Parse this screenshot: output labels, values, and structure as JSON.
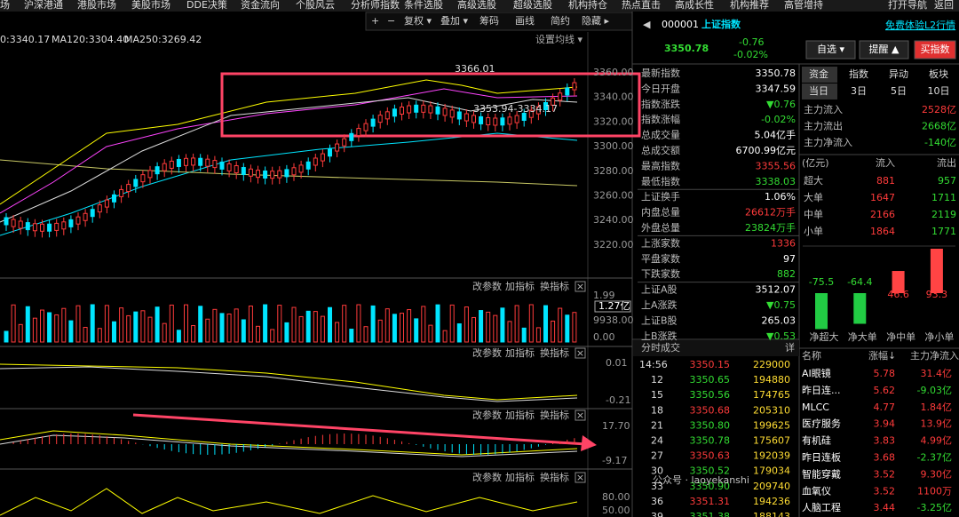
{
  "menu": [
    "场",
    "沪深港通",
    "港股市场",
    "美股市场",
    "DDE决策",
    "资金流向",
    "个股风云",
    "分析师指数",
    "条件选股",
    "高级选股",
    "超级选股",
    "机构持仓",
    "热点直击",
    "高成长性",
    "机构推荐",
    "高管增持",
    "打开导航",
    "返回"
  ],
  "toolbar": [
    "+",
    "−",
    "复权 ▾",
    "叠加 ▾",
    "筹码",
    "画线",
    "简约",
    "隐藏 ▸"
  ],
  "quote": {
    "code": "000001",
    "name": "上证指数",
    "l2": "免费体验L2行情",
    "price": "3350.78",
    "change": "-0.76",
    "pct": "-0.02%",
    "buttons": [
      "自选 ▾",
      "提醒 ▲",
      "买指数"
    ]
  },
  "ma": {
    "ma_partial": "0:3340.17",
    "ma120": "MA120:3304.40",
    "ma250": "MA250:3269.42",
    "settings": "设置均线 ▾"
  },
  "price_axis": [
    "3360.00",
    "3340.00",
    "3320.00",
    "3300.00",
    "3280.00",
    "3260.00",
    "3240.00",
    "3220.00"
  ],
  "annotations": [
    "3366.01",
    "3353.94-3334.17"
  ],
  "stats": [
    [
      "最新指数",
      "3350.78"
    ],
    [
      "今日开盘",
      "3347.59"
    ],
    [
      "指数涨跌",
      "▼0.76"
    ],
    [
      "指数涨幅",
      "-0.02%"
    ],
    [
      "总成交量",
      "5.04亿手"
    ],
    [
      "总成交额",
      "6700.99亿元"
    ],
    [
      "最高指数",
      "3355.56"
    ],
    [
      "最低指数",
      "3338.03"
    ],
    [
      "上证换手",
      "1.06%"
    ],
    [
      "内盘总量",
      "26612万手"
    ],
    [
      "外盘总量",
      "23824万手"
    ],
    [
      "上涨家数",
      "1336"
    ],
    [
      "平盘家数",
      "97"
    ],
    [
      "下跌家数",
      "882"
    ],
    [
      "上证A股",
      "3512.07"
    ],
    [
      "上A涨跌",
      "▼0.75"
    ],
    [
      "上证B股",
      "265.03"
    ],
    [
      "上B涨跌",
      "▼0.53"
    ]
  ],
  "fund": {
    "tabs": [
      "资金",
      "指数",
      "异动",
      "板块"
    ],
    "periods": [
      "当日",
      "3日",
      "5日",
      "10日"
    ],
    "summary": [
      [
        "主力流入",
        "2528亿"
      ],
      [
        "主力流出",
        "2668亿"
      ],
      [
        "主力净流入",
        "-140亿"
      ]
    ],
    "header": [
      "(亿元)",
      "流入",
      "流出"
    ],
    "rows": [
      [
        "超大",
        "881",
        "957"
      ],
      [
        "大单",
        "1647",
        "1711"
      ],
      [
        "中单",
        "2166",
        "2119"
      ],
      [
        "小单",
        "1864",
        "1771"
      ]
    ],
    "net_bars": {
      "values": [
        -75.5,
        -64.4,
        46.6,
        93.3
      ],
      "labels": [
        "净超大",
        "净大单",
        "净中单",
        "净小单"
      ]
    }
  },
  "sectors": {
    "header": [
      "名称",
      "涨幅↓",
      "主力净流入"
    ],
    "rows": [
      [
        "AI眼镜",
        "5.78",
        "31.4亿"
      ],
      [
        "昨日连...",
        "5.62",
        "-9.03亿"
      ],
      [
        "MLCC",
        "4.77",
        "1.84亿"
      ],
      [
        "医疗服务",
        "3.94",
        "13.9亿"
      ],
      [
        "有机硅",
        "3.83",
        "4.99亿"
      ],
      [
        "昨日连板",
        "3.68",
        "-2.37亿"
      ],
      [
        "智能穿戴",
        "3.52",
        "9.30亿"
      ],
      [
        "血氧仪",
        "3.52",
        "1100万"
      ],
      [
        "人脑工程",
        "3.44",
        "-3.25亿"
      ]
    ]
  },
  "trades": {
    "title": "分时成交",
    "detail": "详",
    "rows": [
      [
        "14:56",
        "3350.15",
        "229000"
      ],
      [
        "12",
        "3350.65",
        "194880"
      ],
      [
        "15",
        "3350.56",
        "174765"
      ],
      [
        "18",
        "3350.68",
        "205310"
      ],
      [
        "21",
        "3350.80",
        "199625"
      ],
      [
        "24",
        "3350.78",
        "175607"
      ],
      [
        "27",
        "3350.63",
        "192039"
      ],
      [
        "30",
        "3350.52",
        "179034"
      ],
      [
        "33",
        "3350.90",
        "209740"
      ],
      [
        "36",
        "3351.31",
        "194236"
      ],
      [
        "39",
        "3351.38",
        "188143"
      ]
    ]
  },
  "panels": {
    "tools": [
      "改参数",
      "加指标",
      "换指标",
      "×"
    ],
    "vol_axis": [
      "1.99",
      "1.27亿",
      "9938.00",
      "0.00"
    ],
    "macd_axis": [
      "0.01",
      "-0.21"
    ],
    "osc_axis": [
      "17.70",
      "-9.17"
    ],
    "kdj_axis": [
      "80.00",
      "50.00"
    ]
  },
  "watermark": "公众号 · laoyekanshi"
}
